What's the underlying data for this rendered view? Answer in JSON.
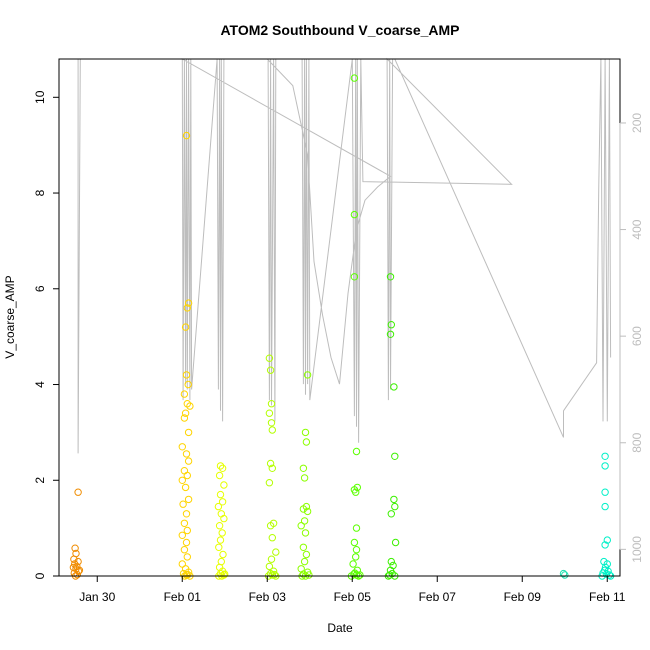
{
  "chart_data": {
    "type": "scatter",
    "title": "ATOM2 Southbound V_coarse_AMP",
    "xlabel": "Date",
    "ylabel": "V_coarse_AMP",
    "x_unit": "days (0 = Jan 27, 00:00)",
    "xlim": [
      2.1,
      15.3
    ],
    "ylim": [
      0,
      10.8
    ],
    "x_ticks": [
      {
        "label": "Jan 30",
        "value": 3
      },
      {
        "label": "Feb 01",
        "value": 5
      },
      {
        "label": "Feb 03",
        "value": 7
      },
      {
        "label": "Feb 05",
        "value": 9
      },
      {
        "label": "Feb 07",
        "value": 11
      },
      {
        "label": "Feb 09",
        "value": 13
      },
      {
        "label": "Feb 11",
        "value": 15
      }
    ],
    "y_ticks": [
      0,
      2,
      4,
      6,
      8,
      10
    ],
    "secondary_axis": {
      "side": "right",
      "reversed": true,
      "ylim": [
        1050,
        80
      ],
      "ticks": [
        200,
        400,
        600,
        800,
        1000
      ],
      "color": "#bdbdbd"
    },
    "grid": false,
    "legend": "none",
    "series": [
      {
        "color": "#f08c00",
        "points": [
          [
            2.55,
            1.75
          ],
          [
            2.48,
            0.58
          ],
          [
            2.5,
            0.47
          ],
          [
            2.45,
            0.35
          ],
          [
            2.55,
            0.3
          ],
          [
            2.47,
            0.25
          ],
          [
            2.52,
            0.2
          ],
          [
            2.5,
            0.15
          ],
          [
            2.56,
            0.1
          ],
          [
            2.46,
            0.06
          ],
          [
            2.53,
            0.03
          ],
          [
            2.49,
            0.0
          ],
          [
            2.58,
            0.12
          ],
          [
            2.44,
            0.18
          ]
        ]
      },
      {
        "color": "#ffd400",
        "points": [
          [
            5.1,
            9.2
          ],
          [
            5.15,
            5.7
          ],
          [
            5.12,
            5.6
          ],
          [
            5.08,
            5.2
          ],
          [
            5.1,
            4.2
          ],
          [
            5.14,
            4.0
          ],
          [
            5.05,
            3.8
          ],
          [
            5.12,
            3.6
          ],
          [
            5.18,
            3.55
          ],
          [
            5.08,
            3.4
          ],
          [
            5.05,
            3.3
          ],
          [
            5.15,
            3.0
          ],
          [
            5.0,
            2.7
          ],
          [
            5.1,
            2.55
          ],
          [
            5.15,
            2.4
          ],
          [
            5.05,
            2.2
          ],
          [
            5.12,
            2.1
          ],
          [
            5.0,
            2.0
          ],
          [
            5.08,
            1.85
          ],
          [
            5.15,
            1.6
          ],
          [
            5.02,
            1.5
          ],
          [
            5.1,
            1.3
          ],
          [
            5.05,
            1.1
          ],
          [
            5.12,
            0.95
          ],
          [
            5.0,
            0.85
          ],
          [
            5.1,
            0.7
          ],
          [
            5.05,
            0.55
          ],
          [
            5.12,
            0.4
          ],
          [
            5.0,
            0.25
          ],
          [
            5.08,
            0.15
          ],
          [
            5.15,
            0.08
          ],
          [
            5.03,
            0.05
          ],
          [
            5.1,
            0.02
          ],
          [
            5.18,
            0.0
          ],
          [
            5.06,
            0.0
          ],
          [
            5.13,
            0.03
          ]
        ]
      },
      {
        "color": "#e6ff00",
        "points": [
          [
            5.9,
            2.3
          ],
          [
            5.95,
            2.25
          ],
          [
            5.88,
            2.1
          ],
          [
            5.98,
            1.9
          ],
          [
            5.9,
            1.7
          ],
          [
            5.95,
            1.55
          ],
          [
            5.85,
            1.45
          ],
          [
            5.92,
            1.3
          ],
          [
            5.98,
            1.2
          ],
          [
            5.88,
            1.05
          ],
          [
            5.94,
            0.9
          ],
          [
            5.9,
            0.75
          ],
          [
            5.86,
            0.6
          ],
          [
            5.96,
            0.45
          ],
          [
            5.92,
            0.3
          ],
          [
            5.88,
            0.18
          ],
          [
            5.95,
            0.1
          ],
          [
            5.9,
            0.05
          ],
          [
            5.98,
            0.02
          ],
          [
            5.86,
            0.0
          ],
          [
            5.93,
            0.0
          ],
          [
            6.0,
            0.04
          ]
        ]
      },
      {
        "color": "#b4ff00",
        "points": [
          [
            7.05,
            4.55
          ],
          [
            7.08,
            4.3
          ],
          [
            7.1,
            3.6
          ],
          [
            7.05,
            3.4
          ],
          [
            7.1,
            3.2
          ],
          [
            7.12,
            3.05
          ],
          [
            7.08,
            2.35
          ],
          [
            7.12,
            2.25
          ],
          [
            7.05,
            1.95
          ],
          [
            7.15,
            1.1
          ],
          [
            7.08,
            1.05
          ],
          [
            7.12,
            0.8
          ],
          [
            7.2,
            0.5
          ],
          [
            7.1,
            0.35
          ],
          [
            7.05,
            0.2
          ],
          [
            7.15,
            0.1
          ],
          [
            7.08,
            0.05
          ],
          [
            7.12,
            0.02
          ],
          [
            7.2,
            0.0
          ],
          [
            7.03,
            0.0
          ],
          [
            7.17,
            0.03
          ]
        ]
      },
      {
        "color": "#8cff00",
        "points": [
          [
            7.95,
            4.2
          ],
          [
            7.9,
            3.0
          ],
          [
            7.92,
            2.8
          ],
          [
            7.85,
            2.25
          ],
          [
            7.88,
            2.05
          ],
          [
            7.92,
            1.45
          ],
          [
            7.85,
            1.4
          ],
          [
            7.95,
            1.35
          ],
          [
            7.88,
            1.15
          ],
          [
            7.8,
            1.05
          ],
          [
            7.9,
            0.9
          ],
          [
            7.85,
            0.6
          ],
          [
            7.92,
            0.45
          ],
          [
            7.88,
            0.3
          ],
          [
            7.8,
            0.15
          ],
          [
            7.95,
            0.08
          ],
          [
            7.85,
            0.04
          ],
          [
            7.9,
            0.0
          ],
          [
            7.98,
            0.02
          ],
          [
            7.82,
            0.0
          ]
        ]
      },
      {
        "color": "#5cff00",
        "points": [
          [
            9.05,
            10.4
          ],
          [
            9.05,
            7.55
          ],
          [
            9.05,
            6.25
          ],
          [
            9.1,
            2.6
          ],
          [
            9.05,
            1.8
          ],
          [
            9.12,
            1.85
          ],
          [
            9.08,
            1.75
          ],
          [
            9.1,
            1.0
          ],
          [
            9.05,
            0.7
          ],
          [
            9.1,
            0.55
          ],
          [
            9.08,
            0.4
          ],
          [
            9.02,
            0.25
          ],
          [
            9.12,
            0.12
          ],
          [
            9.06,
            0.06
          ],
          [
            9.1,
            0.02
          ],
          [
            8.98,
            0.0
          ],
          [
            9.15,
            0.0
          ],
          [
            9.04,
            0.04
          ],
          [
            9.18,
            0.02
          ]
        ]
      },
      {
        "color": "#3cf000",
        "points": [
          [
            9.9,
            6.25
          ],
          [
            9.92,
            5.25
          ],
          [
            9.9,
            5.05
          ],
          [
            9.98,
            3.95
          ],
          [
            10.0,
            2.5
          ],
          [
            9.98,
            1.6
          ],
          [
            10.0,
            1.45
          ],
          [
            9.92,
            1.3
          ],
          [
            10.02,
            0.7
          ],
          [
            9.92,
            0.3
          ],
          [
            9.96,
            0.22
          ],
          [
            9.9,
            0.12
          ],
          [
            9.94,
            0.05
          ],
          [
            9.88,
            0.02
          ],
          [
            10.0,
            0.0
          ],
          [
            9.85,
            0.0
          ]
        ]
      },
      {
        "color": "#1ee0b0",
        "points": [
          [
            13.97,
            0.05
          ],
          [
            14.0,
            0.02
          ]
        ]
      },
      {
        "color": "#00f0c8",
        "points": [
          [
            14.95,
            2.5
          ],
          [
            14.95,
            2.3
          ],
          [
            14.95,
            1.75
          ],
          [
            14.95,
            1.45
          ],
          [
            15.0,
            0.75
          ],
          [
            14.95,
            0.65
          ],
          [
            14.92,
            0.3
          ],
          [
            15.0,
            0.25
          ],
          [
            14.96,
            0.18
          ],
          [
            15.02,
            0.1
          ],
          [
            14.9,
            0.06
          ],
          [
            14.98,
            0.04
          ],
          [
            15.05,
            0.02
          ],
          [
            14.88,
            0.0
          ],
          [
            15.08,
            0.0
          ],
          [
            14.94,
            0.12
          ]
        ]
      }
    ],
    "overlay_line": {
      "color": "#bdbdbd",
      "axis": "secondary",
      "points": [
        [
          2.55,
          80
        ],
        [
          2.55,
          820
        ],
        [
          2.6,
          80
        ],
        [
          3.8,
          80
        ],
        [
          6.8,
          80
        ],
        [
          8.05,
          80
        ],
        [
          7.0,
          80
        ],
        [
          7.6,
          130
        ],
        [
          7.95,
          260
        ],
        [
          8.1,
          460
        ],
        [
          8.3,
          560
        ],
        [
          8.5,
          640
        ],
        [
          8.7,
          690
        ],
        [
          8.9,
          520
        ],
        [
          9.1,
          400
        ],
        [
          9.3,
          345
        ],
        [
          9.6,
          320
        ],
        [
          9.9,
          300
        ],
        [
          5.0,
          80
        ],
        [
          5.02,
          720
        ],
        [
          5.05,
          80
        ],
        [
          5.08,
          690
        ],
        [
          5.1,
          80
        ],
        [
          5.12,
          700
        ],
        [
          5.15,
          80
        ],
        [
          5.18,
          720
        ],
        [
          5.2,
          80
        ],
        [
          5.22,
          700
        ],
        [
          5.82,
          80
        ],
        [
          5.85,
          700
        ],
        [
          5.88,
          80
        ],
        [
          5.9,
          740
        ],
        [
          5.92,
          80
        ],
        [
          5.95,
          760
        ],
        [
          5.98,
          80
        ],
        [
          7.02,
          80
        ],
        [
          7.05,
          720
        ],
        [
          7.08,
          80
        ],
        [
          7.1,
          730
        ],
        [
          7.15,
          80
        ],
        [
          7.18,
          760
        ],
        [
          7.2,
          80
        ],
        [
          7.82,
          80
        ],
        [
          7.85,
          690
        ],
        [
          7.88,
          80
        ],
        [
          7.9,
          710
        ],
        [
          7.92,
          80
        ],
        [
          7.95,
          690
        ],
        [
          7.98,
          80
        ],
        [
          8.0,
          720
        ],
        [
          9.0,
          80
        ],
        [
          9.05,
          750
        ],
        [
          9.08,
          80
        ],
        [
          9.1,
          770
        ],
        [
          9.12,
          80
        ],
        [
          9.15,
          800
        ],
        [
          9.2,
          80
        ],
        [
          9.25,
          310
        ],
        [
          12.75,
          315
        ],
        [
          9.82,
          80
        ],
        [
          9.85,
          720
        ],
        [
          9.88,
          80
        ],
        [
          9.9,
          700
        ],
        [
          9.95,
          80
        ],
        [
          10.0,
          80
        ],
        [
          13.97,
          790
        ],
        [
          13.97,
          740
        ],
        [
          14.75,
          650
        ],
        [
          14.8,
          315
        ],
        [
          14.85,
          80
        ],
        [
          14.9,
          760
        ],
        [
          14.95,
          80
        ],
        [
          15.0,
          760
        ],
        [
          15.05,
          80
        ],
        [
          15.08,
          640
        ]
      ]
    }
  }
}
